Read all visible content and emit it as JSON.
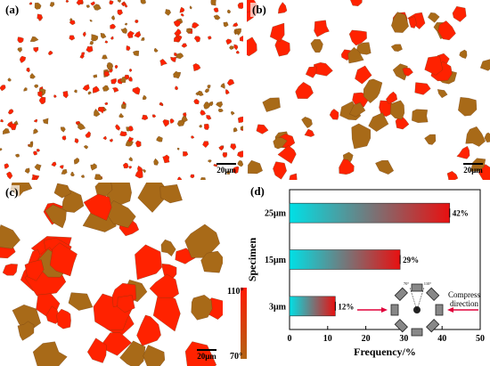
{
  "panels": {
    "a": {
      "label": "(a)",
      "scale": "20μm"
    },
    "b": {
      "label": "(b)",
      "scale": "20μm"
    },
    "c": {
      "label": "(c)",
      "scale": "20μm",
      "legend_max": "110°",
      "legend_min": "70°"
    },
    "d": {
      "label": "(d)"
    }
  },
  "colors": {
    "grain_red": "#ff2200",
    "grain_brown": "#a86a18",
    "bar_start": "#00e0e6",
    "bar_end": "#e81010"
  },
  "chart_data": {
    "type": "bar",
    "orientation": "horizontal",
    "categories": [
      "3μm",
      "15μm",
      "25μm"
    ],
    "values": [
      12,
      29,
      42
    ],
    "data_labels": [
      "12%",
      "29%",
      "42%"
    ],
    "xlabel": "Frequency/%",
    "ylabel": "Specimen",
    "xlim": [
      0,
      50
    ],
    "xticks": [
      "0",
      "10",
      "20",
      "30",
      "40",
      "50"
    ],
    "inset": {
      "label": "Compress direction",
      "angle_left": "70°",
      "angle_right": "110°"
    }
  }
}
